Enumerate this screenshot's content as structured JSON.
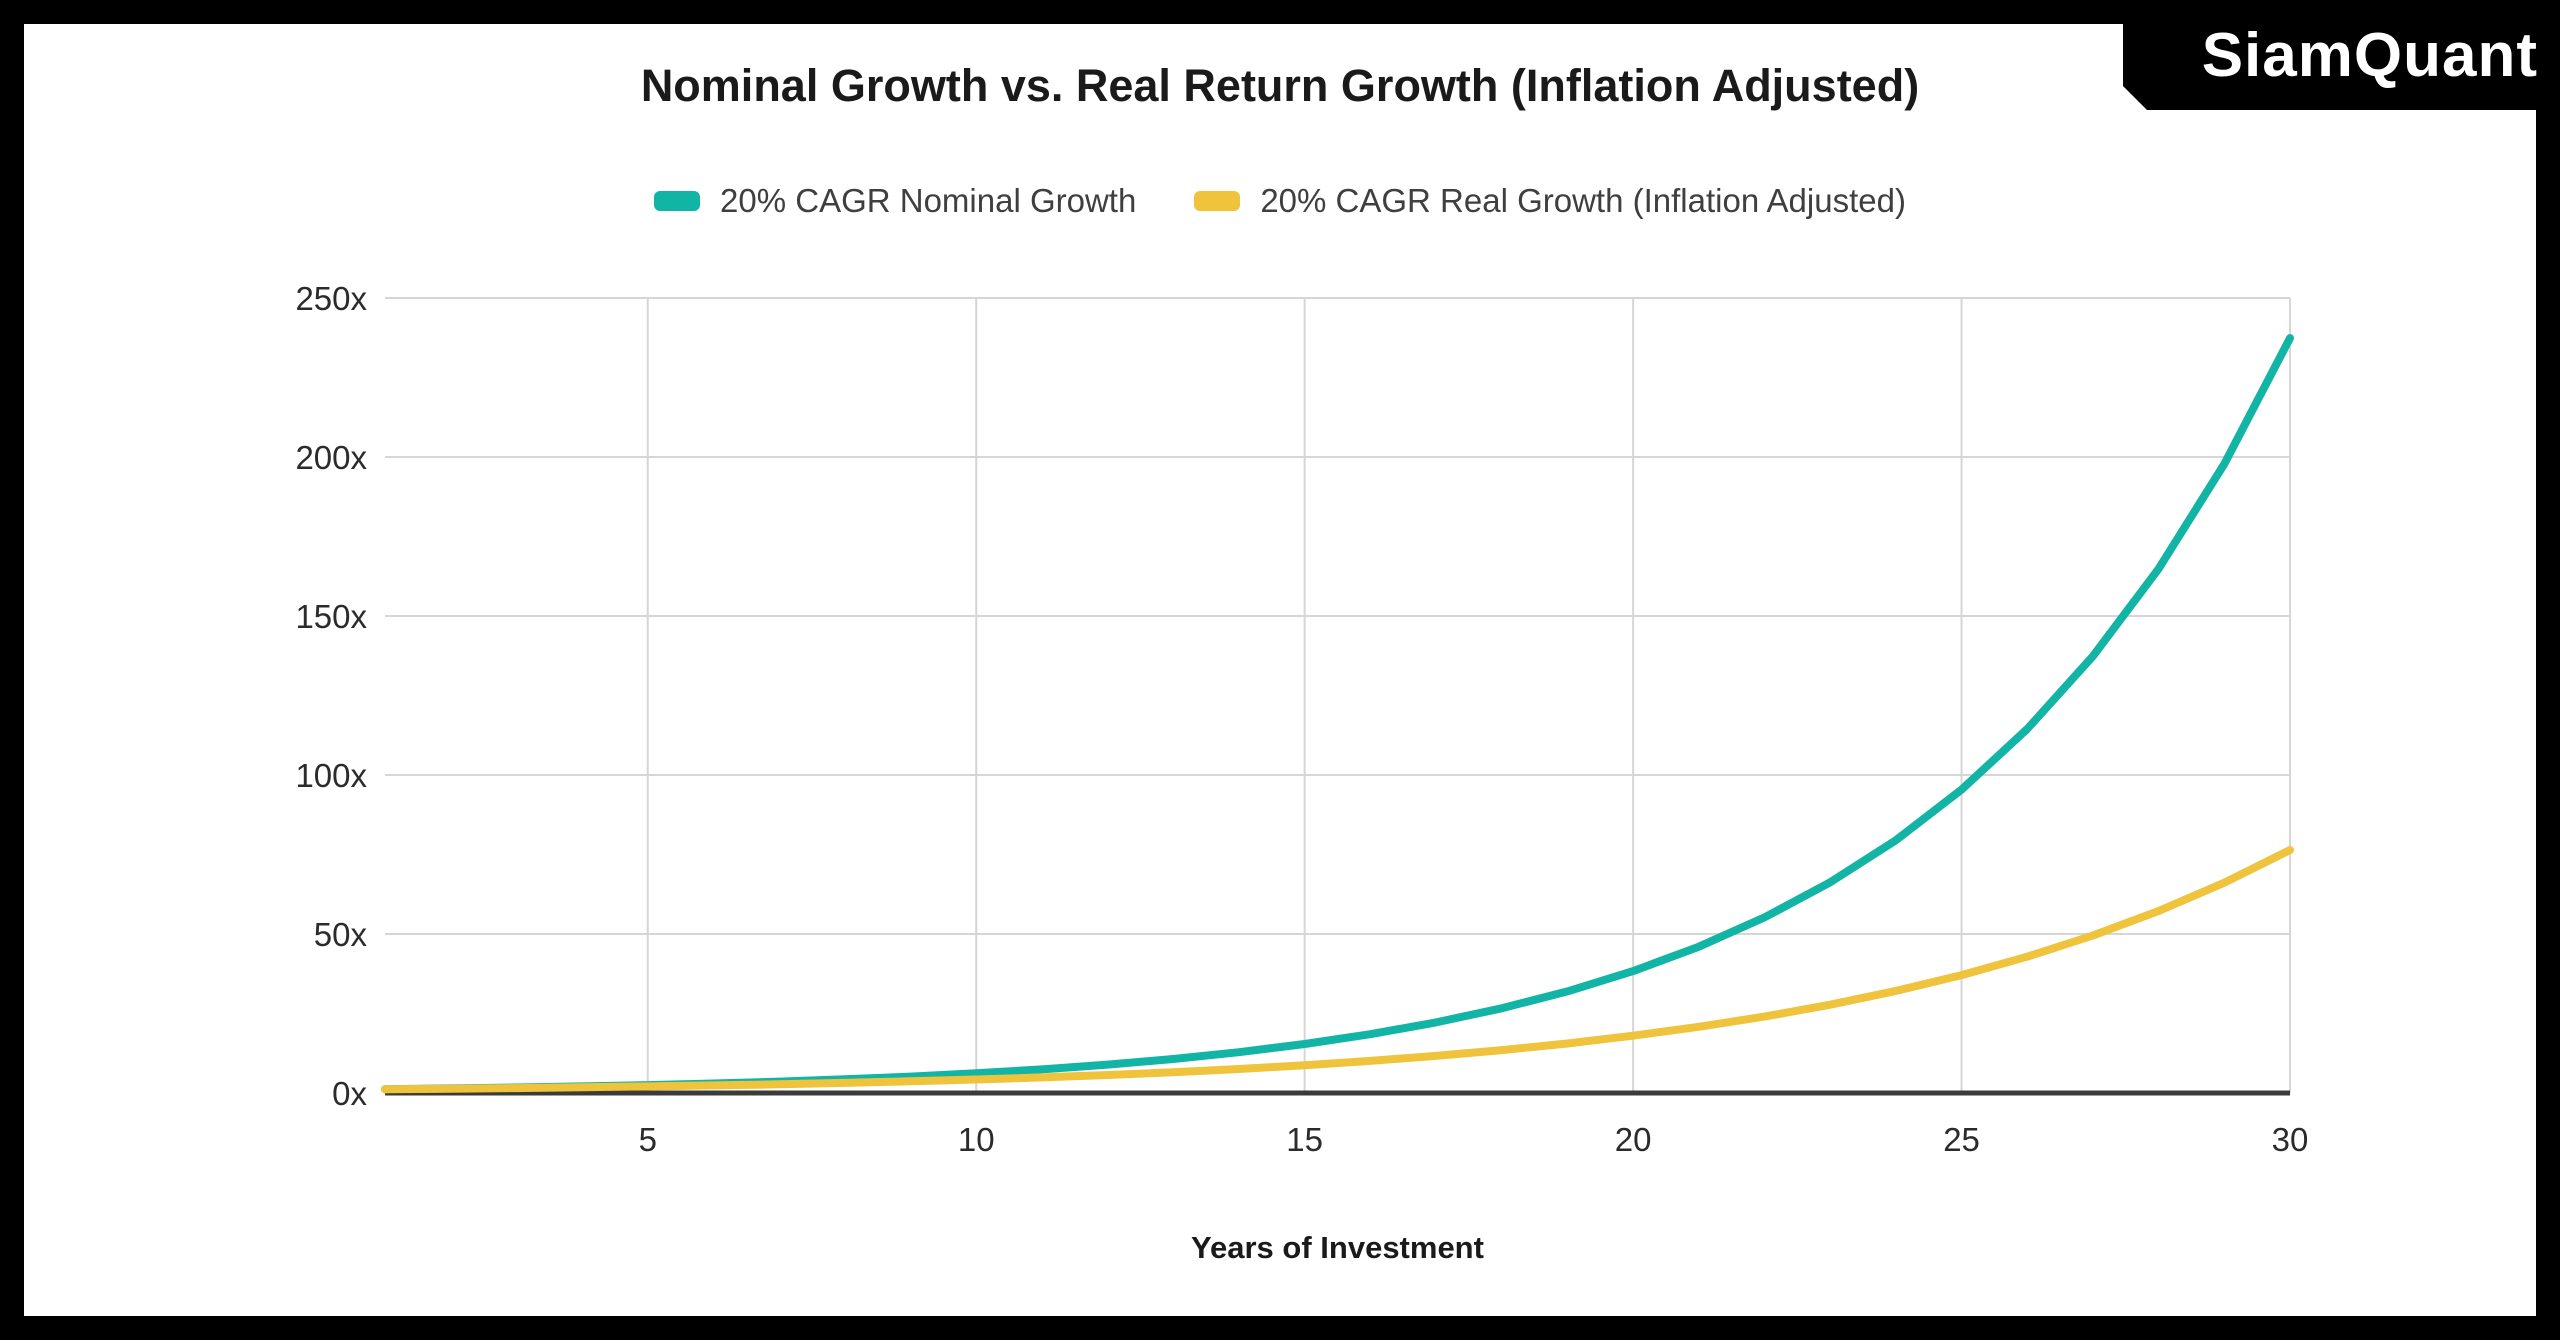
{
  "branding": {
    "logo_text": "SiamQuant"
  },
  "colors": {
    "frame": "#000000",
    "background": "#FFFFFF",
    "gridline": "#D6D6D6",
    "axis_line": "#3B3B3B",
    "nominal_line": "#12B5A5",
    "real_line": "#F0C33C"
  },
  "chart_data": {
    "type": "line",
    "title": "Nominal Growth vs. Real Return Growth (Inflation Adjusted)",
    "xlabel": "Years of Investment",
    "ylabel": "",
    "grid": true,
    "legend_position": "top-center",
    "xlim": [
      1,
      30
    ],
    "ylim": [
      0,
      250
    ],
    "x_ticks": [
      5,
      10,
      15,
      20,
      25,
      30
    ],
    "y_ticks": [
      0,
      50,
      100,
      150,
      200,
      250
    ],
    "y_tick_suffix": "x",
    "x": [
      1,
      2,
      3,
      4,
      5,
      6,
      7,
      8,
      9,
      10,
      11,
      12,
      13,
      14,
      15,
      16,
      17,
      18,
      19,
      20,
      21,
      22,
      23,
      24,
      25,
      26,
      27,
      28,
      29,
      30
    ],
    "series": [
      {
        "name": "20% CAGR Nominal Growth",
        "color": "#12B5A5",
        "values": [
          1.2,
          1.44,
          1.73,
          2.07,
          2.49,
          2.99,
          3.58,
          4.3,
          5.16,
          6.19,
          7.43,
          8.92,
          10.7,
          12.84,
          15.41,
          18.49,
          22.19,
          26.62,
          31.95,
          38.34,
          46.01,
          55.21,
          66.25,
          79.5,
          95.4,
          114.48,
          137.37,
          164.84,
          197.81,
          237.38
        ]
      },
      {
        "name": "20% CAGR Real Growth (Inflation Adjusted)",
        "color": "#F0C33C",
        "values": [
          1.16,
          1.34,
          1.54,
          1.78,
          2.06,
          2.38,
          2.75,
          3.18,
          3.67,
          4.24,
          4.9,
          5.67,
          6.55,
          7.56,
          8.74,
          10.1,
          11.67,
          13.49,
          15.58,
          18.01,
          20.81,
          24.04,
          27.78,
          32.1,
          37.09,
          42.86,
          49.52,
          57.22,
          66.12,
          76.4
        ]
      }
    ]
  }
}
